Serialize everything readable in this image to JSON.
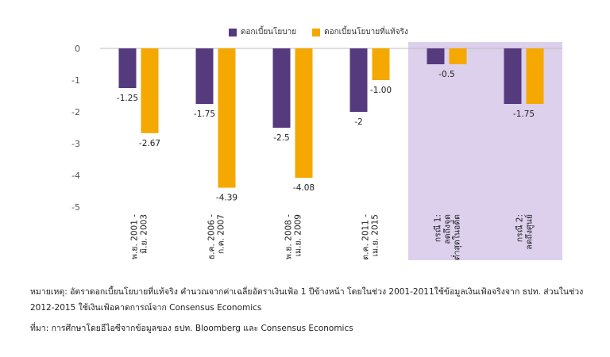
{
  "legend": {
    "policy_rate": "ดอกเบี้ยนโยบาย",
    "real_policy_rate": "ดอกเบี้ยนโยบายที่แท้จริง"
  },
  "colors": {
    "policy_rate": "#553a7e",
    "real_policy_rate": "#f5a800",
    "highlight_band": "#dcd0ec",
    "axis_text": "#555555"
  },
  "chart_data": {
    "type": "bar",
    "categories": [
      [
        "พ.ย. 2001 -",
        "มิ.ย. 2003"
      ],
      [
        "ธ.ค. 2006 -",
        "ก.ค. 2007"
      ],
      [
        "พ.ย. 2008 -",
        "เม.ย. 2009"
      ],
      [
        "ต.ค. 2011 -",
        "เม.ย. 2015"
      ],
      [
        "กรณี 1:",
        "ลดถึงจุด",
        "ต่ำสุดในอดีต"
      ],
      [
        "กรณี 2:",
        "ลดถึงศูนย์"
      ]
    ],
    "series": [
      {
        "name": "ดอกเบี้ยนโยบาย",
        "values": [
          -1.25,
          -1.75,
          -2.5,
          -2,
          -0.5,
          -1.75
        ],
        "labels": [
          "-1.25",
          "-1.75",
          "-2.5",
          "-2",
          "",
          ""
        ]
      },
      {
        "name": "ดอกเบี้ยนโยบายที่แท้จริง",
        "values": [
          -2.67,
          -4.39,
          -4.08,
          -1.0,
          -0.5,
          -1.75
        ],
        "labels": [
          "-2.67",
          "-4.39",
          "-4.08",
          "-1.00",
          "-0.5",
          "-1.75"
        ]
      }
    ],
    "y_ticks": [
      "0",
      "-1",
      "-2",
      "-3",
      "-4",
      "-5"
    ],
    "ylim": [
      -5,
      0
    ],
    "highlighted_categories": [
      4,
      5
    ],
    "grid": false
  },
  "notes": {
    "note1": "หมายเหตุ: อัตราดอกเบี้ยนโยบายที่แท้จริง คำนวณจากค่าเฉลี่ยอัตราเงินเฟ้อ 1 ปีข้างหน้า โดยในช่วง 2001-2011ใช้ข้อมูลเงินเฟ้อจริงจาก ธปท. ส่วนในช่วง 2012-2015 ใช้เงินเฟ้อคาดการณ์จาก Consensus Economics",
    "note2": "ที่มา: การศึกษาโดยอีไอซีจากข้อมูลของ ธปท. Bloomberg และ Consensus Economics"
  }
}
